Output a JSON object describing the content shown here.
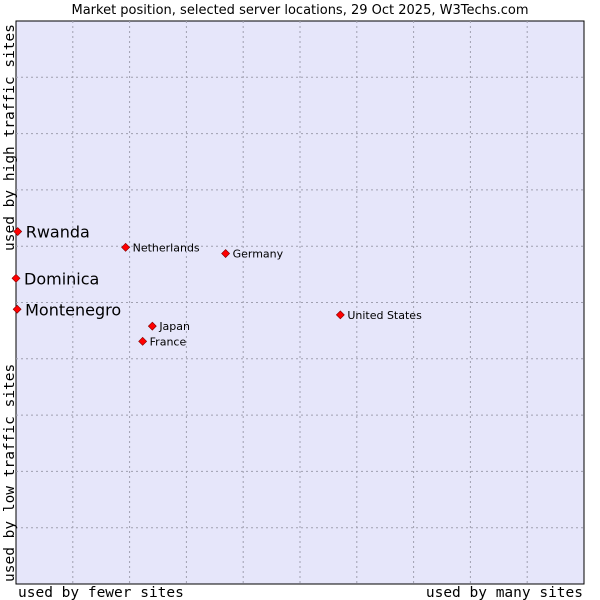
{
  "chart_data": {
    "type": "scatter",
    "title": "Market position, selected server locations, 29 Oct 2025, W3Techs.com",
    "xlabel_left": "used by fewer sites",
    "xlabel_right": "used by many sites",
    "ylabel_bottom": "used by low traffic sites",
    "ylabel_top": "used by high traffic sites",
    "xlim": [
      0,
      100
    ],
    "ylim": [
      0,
      100
    ],
    "grid": true,
    "points": [
      {
        "name": "Rwanda",
        "x": 0.3,
        "y": 62.6,
        "emphasis": true
      },
      {
        "name": "Dominica",
        "x": 0.0,
        "y": 54.3,
        "emphasis": true
      },
      {
        "name": "Montenegro",
        "x": 0.2,
        "y": 48.8,
        "emphasis": true
      },
      {
        "name": "Netherlands",
        "x": 19.3,
        "y": 59.8,
        "emphasis": false
      },
      {
        "name": "Germany",
        "x": 36.9,
        "y": 58.7,
        "emphasis": false
      },
      {
        "name": "United States",
        "x": 57.1,
        "y": 47.8,
        "emphasis": false
      },
      {
        "name": "Japan",
        "x": 24.0,
        "y": 45.8,
        "emphasis": false
      },
      {
        "name": "France",
        "x": 22.3,
        "y": 43.1,
        "emphasis": false
      }
    ]
  },
  "colors": {
    "plot_background": "#e6e6fa",
    "marker": "#ff0000",
    "marker_stroke": "#800000"
  }
}
